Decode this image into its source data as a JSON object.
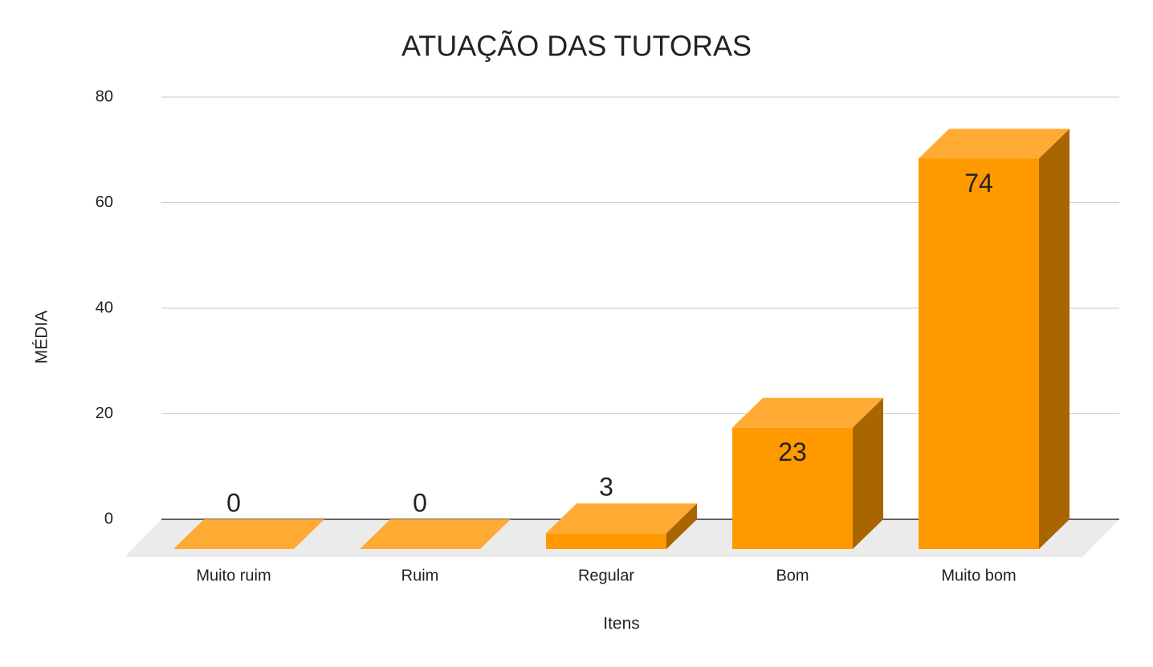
{
  "chart_data": {
    "type": "bar3d",
    "title": "ATUAÇÃO DAS TUTORAS",
    "x_label": "Itens",
    "y_label": "MÉDIA",
    "categories": [
      "Muito ruim",
      "Ruim",
      "Regular",
      "Bom",
      "Muito bom"
    ],
    "values": [
      0,
      0,
      3,
      23,
      74
    ],
    "color": "#ff9900",
    "ylim": [
      0,
      80
    ],
    "yticks": [
      0,
      20,
      40,
      60,
      80
    ],
    "grid": true
  }
}
